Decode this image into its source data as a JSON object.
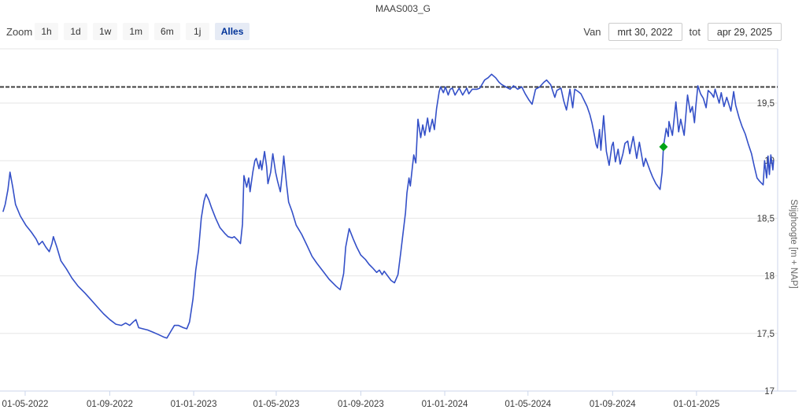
{
  "title": "MAAS003_G",
  "range_selector": {
    "zoom_label": "Zoom",
    "buttons": [
      "1h",
      "1d",
      "1w",
      "1m",
      "6m",
      "1j",
      "Alles"
    ],
    "selected": "Alles",
    "from_label": "Van",
    "from_value": "mrt 30, 2022",
    "to_label": "tot",
    "to_value": "apr 29, 2025"
  },
  "colors": {
    "series": "#3450c8",
    "marker": "#00a316",
    "plotline": "#3f3f3f",
    "grid": "#e6e6e6",
    "axis_line": "#ccd6eb",
    "label": "#3a3a3a",
    "axis_title": "#666666"
  },
  "chart_data": {
    "type": "line",
    "title": "MAAS003_G",
    "xlabel": "",
    "ylabel": "Stijghoogte [m + NAP]",
    "ylim": [
      17,
      19.95
    ],
    "grid": true,
    "legend": "none",
    "start_date": "2022-03-30",
    "end_date": "2025-04-29",
    "yaxis_ticks": [
      {
        "v": 17,
        "label": "17"
      },
      {
        "v": 17.5,
        "label": "17,5"
      },
      {
        "v": 18,
        "label": "18"
      },
      {
        "v": 18.5,
        "label": "18,5"
      },
      {
        "v": 19,
        "label": "19"
      },
      {
        "v": 19.5,
        "label": "19,5"
      }
    ],
    "xaxis_ticks": [
      {
        "date": "2022-05-01",
        "label": "01-05-2022"
      },
      {
        "date": "2022-09-01",
        "label": "01-09-2022"
      },
      {
        "date": "2023-01-01",
        "label": "01-01-2023"
      },
      {
        "date": "2023-05-01",
        "label": "01-05-2023"
      },
      {
        "date": "2023-09-01",
        "label": "01-09-2023"
      },
      {
        "date": "2024-01-01",
        "label": "01-01-2024"
      },
      {
        "date": "2024-05-01",
        "label": "01-05-2024"
      },
      {
        "date": "2024-09-01",
        "label": "01-09-2024"
      },
      {
        "date": "2025-01-01",
        "label": "01-01-2025"
      }
    ],
    "plotline": {
      "value": 19.64,
      "style": "dashed"
    },
    "marker_point": {
      "date": "2024-11-14",
      "value": 19.12,
      "shape": "diamond"
    },
    "series": [
      {
        "name": "Stijghoogte",
        "data": [
          [
            "2022-03-30",
            18.56
          ],
          [
            "2022-04-02",
            18.62
          ],
          [
            "2022-04-06",
            18.75
          ],
          [
            "2022-04-09",
            18.9
          ],
          [
            "2022-04-13",
            18.77
          ],
          [
            "2022-04-17",
            18.62
          ],
          [
            "2022-04-24",
            18.52
          ],
          [
            "2022-05-02",
            18.44
          ],
          [
            "2022-05-10",
            18.38
          ],
          [
            "2022-05-17",
            18.32
          ],
          [
            "2022-05-21",
            18.27
          ],
          [
            "2022-05-26",
            18.3
          ],
          [
            "2022-05-31",
            18.25
          ],
          [
            "2022-06-05",
            18.21
          ],
          [
            "2022-06-09",
            18.28
          ],
          [
            "2022-06-11",
            18.34
          ],
          [
            "2022-06-16",
            18.25
          ],
          [
            "2022-06-22",
            18.13
          ],
          [
            "2022-06-30",
            18.06
          ],
          [
            "2022-07-08",
            17.98
          ],
          [
            "2022-07-17",
            17.91
          ],
          [
            "2022-07-27",
            17.85
          ],
          [
            "2022-08-05",
            17.79
          ],
          [
            "2022-08-14",
            17.73
          ],
          [
            "2022-08-23",
            17.67
          ],
          [
            "2022-09-01",
            17.62
          ],
          [
            "2022-09-10",
            17.58
          ],
          [
            "2022-09-18",
            17.57
          ],
          [
            "2022-09-24",
            17.59
          ],
          [
            "2022-09-30",
            17.57
          ],
          [
            "2022-10-05",
            17.6
          ],
          [
            "2022-10-09",
            17.62
          ],
          [
            "2022-10-13",
            17.55
          ],
          [
            "2022-10-19",
            17.54
          ],
          [
            "2022-10-26",
            17.53
          ],
          [
            "2022-11-03",
            17.51
          ],
          [
            "2022-11-11",
            17.49
          ],
          [
            "2022-11-18",
            17.47
          ],
          [
            "2022-11-23",
            17.46
          ],
          [
            "2022-11-29",
            17.52
          ],
          [
            "2022-12-04",
            17.57
          ],
          [
            "2022-12-10",
            17.57
          ],
          [
            "2022-12-17",
            17.55
          ],
          [
            "2022-12-22",
            17.54
          ],
          [
            "2022-12-26",
            17.6
          ],
          [
            "2022-12-31",
            17.8
          ],
          [
            "2023-01-04",
            18.05
          ],
          [
            "2023-01-08",
            18.22
          ],
          [
            "2023-01-12",
            18.5
          ],
          [
            "2023-01-16",
            18.65
          ],
          [
            "2023-01-19",
            18.71
          ],
          [
            "2023-01-23",
            18.66
          ],
          [
            "2023-01-27",
            18.59
          ],
          [
            "2023-02-02",
            18.5
          ],
          [
            "2023-02-08",
            18.42
          ],
          [
            "2023-02-15",
            18.37
          ],
          [
            "2023-02-20",
            18.34
          ],
          [
            "2023-02-26",
            18.33
          ],
          [
            "2023-03-01",
            18.34
          ],
          [
            "2023-03-06",
            18.31
          ],
          [
            "2023-03-10",
            18.28
          ],
          [
            "2023-03-13",
            18.45
          ],
          [
            "2023-03-15",
            18.87
          ],
          [
            "2023-03-19",
            18.77
          ],
          [
            "2023-03-22",
            18.85
          ],
          [
            "2023-03-24",
            18.73
          ],
          [
            "2023-03-28",
            18.9
          ],
          [
            "2023-03-31",
            19.0
          ],
          [
            "2023-04-02",
            19.02
          ],
          [
            "2023-04-06",
            18.93
          ],
          [
            "2023-04-08",
            19.0
          ],
          [
            "2023-04-10",
            18.92
          ],
          [
            "2023-04-14",
            19.08
          ],
          [
            "2023-04-17",
            18.95
          ],
          [
            "2023-04-19",
            18.8
          ],
          [
            "2023-04-23",
            18.9
          ],
          [
            "2023-04-26",
            19.06
          ],
          [
            "2023-04-30",
            18.9
          ],
          [
            "2023-05-03",
            18.82
          ],
          [
            "2023-05-07",
            18.73
          ],
          [
            "2023-05-10",
            18.9
          ],
          [
            "2023-05-12",
            19.04
          ],
          [
            "2023-05-16",
            18.8
          ],
          [
            "2023-05-19",
            18.64
          ],
          [
            "2023-05-24",
            18.56
          ],
          [
            "2023-05-30",
            18.44
          ],
          [
            "2023-06-07",
            18.36
          ],
          [
            "2023-06-15",
            18.26
          ],
          [
            "2023-06-22",
            18.17
          ],
          [
            "2023-06-29",
            18.11
          ],
          [
            "2023-07-08",
            18.04
          ],
          [
            "2023-07-17",
            17.97
          ],
          [
            "2023-07-27",
            17.91
          ],
          [
            "2023-08-02",
            17.88
          ],
          [
            "2023-08-07",
            18.02
          ],
          [
            "2023-08-10",
            18.25
          ],
          [
            "2023-08-15",
            18.41
          ],
          [
            "2023-08-21",
            18.32
          ],
          [
            "2023-08-26",
            18.25
          ],
          [
            "2023-09-01",
            18.18
          ],
          [
            "2023-09-08",
            18.14
          ],
          [
            "2023-09-13",
            18.1
          ],
          [
            "2023-09-18",
            18.07
          ],
          [
            "2023-09-24",
            18.03
          ],
          [
            "2023-09-28",
            18.05
          ],
          [
            "2023-10-02",
            18.01
          ],
          [
            "2023-10-05",
            18.04
          ],
          [
            "2023-10-10",
            18.0
          ],
          [
            "2023-10-15",
            17.96
          ],
          [
            "2023-10-20",
            17.94
          ],
          [
            "2023-10-25",
            18.01
          ],
          [
            "2023-10-29",
            18.2
          ],
          [
            "2023-11-01",
            18.35
          ],
          [
            "2023-11-05",
            18.55
          ],
          [
            "2023-11-07",
            18.72
          ],
          [
            "2023-11-10",
            18.85
          ],
          [
            "2023-11-12",
            18.78
          ],
          [
            "2023-11-15",
            18.95
          ],
          [
            "2023-11-17",
            19.05
          ],
          [
            "2023-11-20",
            18.98
          ],
          [
            "2023-11-23",
            19.36
          ],
          [
            "2023-11-27",
            19.2
          ],
          [
            "2023-11-30",
            19.31
          ],
          [
            "2023-12-03",
            19.22
          ],
          [
            "2023-12-07",
            19.37
          ],
          [
            "2023-12-10",
            19.25
          ],
          [
            "2023-12-14",
            19.36
          ],
          [
            "2023-12-17",
            19.27
          ],
          [
            "2023-12-20",
            19.45
          ],
          [
            "2023-12-24",
            19.6
          ],
          [
            "2023-12-26",
            19.64
          ],
          [
            "2023-12-30",
            19.59
          ],
          [
            "2024-01-02",
            19.64
          ],
          [
            "2024-01-06",
            19.57
          ],
          [
            "2024-01-09",
            19.62
          ],
          [
            "2024-01-12",
            19.63
          ],
          [
            "2024-01-16",
            19.57
          ],
          [
            "2024-01-22",
            19.63
          ],
          [
            "2024-01-27",
            19.57
          ],
          [
            "2024-02-02",
            19.63
          ],
          [
            "2024-02-05",
            19.58
          ],
          [
            "2024-02-10",
            19.62
          ],
          [
            "2024-02-17",
            19.62
          ],
          [
            "2024-02-21",
            19.63
          ],
          [
            "2024-02-25",
            19.67
          ],
          [
            "2024-02-28",
            19.7
          ],
          [
            "2024-03-04",
            19.72
          ],
          [
            "2024-03-09",
            19.75
          ],
          [
            "2024-03-15",
            19.72
          ],
          [
            "2024-03-20",
            19.68
          ],
          [
            "2024-03-24",
            19.66
          ],
          [
            "2024-03-30",
            19.64
          ],
          [
            "2024-04-05",
            19.62
          ],
          [
            "2024-04-10",
            19.65
          ],
          [
            "2024-04-16",
            19.62
          ],
          [
            "2024-04-22",
            19.64
          ],
          [
            "2024-04-27",
            19.58
          ],
          [
            "2024-05-02",
            19.53
          ],
          [
            "2024-05-07",
            19.49
          ],
          [
            "2024-05-12",
            19.62
          ],
          [
            "2024-05-18",
            19.64
          ],
          [
            "2024-05-24",
            19.68
          ],
          [
            "2024-05-28",
            19.7
          ],
          [
            "2024-06-03",
            19.66
          ],
          [
            "2024-06-09",
            19.55
          ],
          [
            "2024-06-12",
            19.61
          ],
          [
            "2024-06-18",
            19.63
          ],
          [
            "2024-06-22",
            19.52
          ],
          [
            "2024-06-26",
            19.44
          ],
          [
            "2024-07-01",
            19.62
          ],
          [
            "2024-07-05",
            19.46
          ],
          [
            "2024-07-08",
            19.62
          ],
          [
            "2024-07-13",
            19.6
          ],
          [
            "2024-07-17",
            19.58
          ],
          [
            "2024-07-22",
            19.52
          ],
          [
            "2024-07-26",
            19.47
          ],
          [
            "2024-07-30",
            19.4
          ],
          [
            "2024-08-02",
            19.33
          ],
          [
            "2024-08-06",
            19.21
          ],
          [
            "2024-08-08",
            19.14
          ],
          [
            "2024-08-10",
            19.11
          ],
          [
            "2024-08-13",
            19.27
          ],
          [
            "2024-08-15",
            19.09
          ],
          [
            "2024-08-17",
            19.25
          ],
          [
            "2024-08-19",
            19.39
          ],
          [
            "2024-08-23",
            19.08
          ],
          [
            "2024-08-27",
            18.96
          ],
          [
            "2024-08-31",
            19.13
          ],
          [
            "2024-09-02",
            19.16
          ],
          [
            "2024-09-05",
            18.99
          ],
          [
            "2024-09-09",
            19.1
          ],
          [
            "2024-09-12",
            18.97
          ],
          [
            "2024-09-16",
            19.06
          ],
          [
            "2024-09-19",
            19.15
          ],
          [
            "2024-09-23",
            19.17
          ],
          [
            "2024-09-26",
            19.06
          ],
          [
            "2024-10-01",
            19.21
          ],
          [
            "2024-10-06",
            19.02
          ],
          [
            "2024-10-10",
            19.16
          ],
          [
            "2024-10-16",
            18.95
          ],
          [
            "2024-10-19",
            19.02
          ],
          [
            "2024-10-25",
            18.92
          ],
          [
            "2024-10-29",
            18.86
          ],
          [
            "2024-11-03",
            18.8
          ],
          [
            "2024-11-09",
            18.75
          ],
          [
            "2024-11-12",
            18.9
          ],
          [
            "2024-11-14",
            19.12
          ],
          [
            "2024-11-18",
            19.28
          ],
          [
            "2024-11-21",
            19.21
          ],
          [
            "2024-11-22",
            19.34
          ],
          [
            "2024-11-27",
            19.22
          ],
          [
            "2024-12-02",
            19.51
          ],
          [
            "2024-12-06",
            19.25
          ],
          [
            "2024-12-09",
            19.36
          ],
          [
            "2024-12-14",
            19.22
          ],
          [
            "2024-12-19",
            19.57
          ],
          [
            "2024-12-23",
            19.42
          ],
          [
            "2024-12-26",
            19.47
          ],
          [
            "2024-12-29",
            19.33
          ],
          [
            "2024-12-31",
            19.47
          ],
          [
            "2025-01-03",
            19.65
          ],
          [
            "2025-01-07",
            19.58
          ],
          [
            "2025-01-11",
            19.54
          ],
          [
            "2025-01-15",
            19.46
          ],
          [
            "2025-01-18",
            19.61
          ],
          [
            "2025-01-23",
            19.58
          ],
          [
            "2025-01-26",
            19.55
          ],
          [
            "2025-01-28",
            19.62
          ],
          [
            "2025-02-03",
            19.5
          ],
          [
            "2025-02-06",
            19.59
          ],
          [
            "2025-02-10",
            19.47
          ],
          [
            "2025-02-14",
            19.55
          ],
          [
            "2025-02-20",
            19.43
          ],
          [
            "2025-02-24",
            19.6
          ],
          [
            "2025-02-27",
            19.48
          ],
          [
            "2025-03-04",
            19.37
          ],
          [
            "2025-03-08",
            19.3
          ],
          [
            "2025-03-13",
            19.23
          ],
          [
            "2025-03-17",
            19.15
          ],
          [
            "2025-03-22",
            19.06
          ],
          [
            "2025-03-26",
            18.95
          ],
          [
            "2025-03-30",
            18.85
          ],
          [
            "2025-04-03",
            18.82
          ],
          [
            "2025-04-08",
            18.79
          ],
          [
            "2025-04-10",
            19.0
          ],
          [
            "2025-04-13",
            18.85
          ],
          [
            "2025-04-15",
            19.04
          ],
          [
            "2025-04-17",
            18.88
          ],
          [
            "2025-04-19",
            19.05
          ],
          [
            "2025-04-22",
            18.92
          ],
          [
            "2025-04-23",
            19.0
          ]
        ]
      }
    ]
  }
}
